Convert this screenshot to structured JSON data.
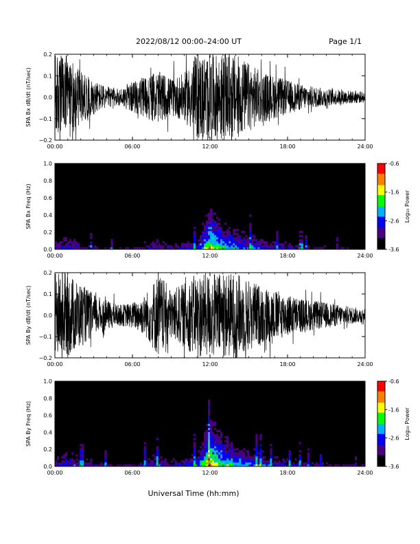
{
  "header": {
    "title": "2022/08/12  00:00–24:00 UT",
    "page": "Page 1/1"
  },
  "colors": {
    "ink": "#000000",
    "background": "#ffffff",
    "colormap": [
      "#000000",
      "#4b0082",
      "#0000ff",
      "#00b0ff",
      "#00ff00",
      "#ffff00",
      "#ff8000",
      "#ff0000"
    ]
  },
  "chart_data": [
    {
      "type": "line",
      "panel": "bx-waveform",
      "ylabel": "SPA Bx dB/dt (nT/sec)",
      "xlim": [
        0,
        24
      ],
      "ylim": [
        -0.2,
        0.2
      ],
      "x_ticks": [
        "00:00",
        "06:00",
        "12:00",
        "18:00",
        "24:00"
      ],
      "y_ticks": [
        "0.2",
        "0.1",
        "0.0",
        "−0.1",
        "−0.2"
      ],
      "series": [
        {
          "x": [
            0,
            1,
            2,
            3,
            4,
            5,
            6,
            7,
            8,
            9,
            10,
            11,
            12,
            13,
            14,
            15,
            16,
            17,
            18,
            19,
            20,
            21,
            22,
            23,
            24
          ],
          "amplitude_envelope": [
            0.2,
            0.2,
            0.12,
            0.08,
            0.05,
            0.04,
            0.07,
            0.1,
            0.12,
            0.09,
            0.11,
            0.2,
            0.2,
            0.2,
            0.2,
            0.16,
            0.12,
            0.1,
            0.08,
            0.06,
            0.05,
            0.04,
            0.035,
            0.03,
            0.025
          ]
        }
      ]
    },
    {
      "type": "heatmap",
      "panel": "bx-spectrogram",
      "ylabel": "SPA Bx Freq (Hz)",
      "xlim": [
        0,
        24
      ],
      "ylim": [
        0,
        1.0
      ],
      "x_ticks": [
        "00:00",
        "06:00",
        "12:00",
        "18:00",
        "24:00"
      ],
      "y_ticks": [
        "1.0",
        "0.8",
        "0.6",
        "0.4",
        "0.2",
        "0.0"
      ],
      "colorbar": {
        "label": "Log₁₀ Power",
        "range": [
          -3.6,
          -0.6
        ],
        "ticks": [
          "-0.6",
          "-1.6",
          "-2.6",
          "-3.6"
        ]
      },
      "hours": [
        0,
        1,
        2,
        3,
        4,
        5,
        6,
        7,
        8,
        9,
        10,
        11,
        12,
        13,
        14,
        15,
        16,
        17,
        18,
        19,
        20,
        21,
        22,
        23,
        24
      ],
      "low_freq_log_power": [
        -2.6,
        -2.4,
        -2.6,
        -2.9,
        -3.0,
        -3.1,
        -3.0,
        -2.7,
        -2.6,
        -2.8,
        -2.6,
        -2.4,
        -1.2,
        -1.8,
        -2.0,
        -2.2,
        -2.4,
        -2.6,
        -2.6,
        -2.8,
        -2.9,
        -3.0,
        -3.1,
        -3.1,
        -3.2
      ]
    },
    {
      "type": "line",
      "panel": "by-waveform",
      "ylabel": "SPA By dB/dt (nT/sec)",
      "xlim": [
        0,
        24
      ],
      "ylim": [
        -0.2,
        0.2
      ],
      "x_ticks": [
        "00:00",
        "06:00",
        "12:00",
        "18:00",
        "24:00"
      ],
      "y_ticks": [
        "0.2",
        "0.1",
        "0.0",
        "−0.1",
        "−0.2"
      ],
      "series": [
        {
          "x": [
            0,
            1,
            2,
            3,
            4,
            5,
            6,
            7,
            8,
            9,
            10,
            11,
            12,
            13,
            14,
            15,
            16,
            17,
            18,
            19,
            20,
            21,
            22,
            23,
            24
          ],
          "amplitude_envelope": [
            0.2,
            0.2,
            0.15,
            0.1,
            0.07,
            0.05,
            0.06,
            0.1,
            0.2,
            0.12,
            0.15,
            0.2,
            0.2,
            0.2,
            0.2,
            0.17,
            0.14,
            0.12,
            0.1,
            0.08,
            0.07,
            0.06,
            0.05,
            0.04,
            0.03
          ]
        }
      ]
    },
    {
      "type": "heatmap",
      "panel": "by-spectrogram",
      "ylabel": "SPA By Freq (Hz)",
      "xlim": [
        0,
        24
      ],
      "ylim": [
        0,
        1.0
      ],
      "x_ticks": [
        "00:00",
        "06:00",
        "12:00",
        "18:00",
        "24:00"
      ],
      "y_ticks": [
        "1.0",
        "0.8",
        "0.6",
        "0.4",
        "0.2",
        "0.0"
      ],
      "colorbar": {
        "label": "Log₁₀ Power",
        "range": [
          -3.6,
          -0.6
        ],
        "ticks": [
          "-0.6",
          "-1.6",
          "-2.6",
          "-3.6"
        ]
      },
      "hours": [
        0,
        1,
        2,
        3,
        4,
        5,
        6,
        7,
        8,
        9,
        10,
        11,
        12,
        13,
        14,
        15,
        16,
        17,
        18,
        19,
        20,
        21,
        22,
        23,
        24
      ],
      "low_freq_log_power": [
        -2.5,
        -2.3,
        -2.5,
        -2.8,
        -2.9,
        -3.0,
        -2.9,
        -2.6,
        -2.4,
        -2.7,
        -2.5,
        -2.3,
        -1.0,
        -1.6,
        -1.9,
        -2.1,
        -2.3,
        -2.5,
        -2.5,
        -2.7,
        -2.8,
        -2.9,
        -3.0,
        -3.0,
        -3.1
      ]
    }
  ],
  "footer": {
    "xlabel": "Universal Time (hh:mm)"
  }
}
